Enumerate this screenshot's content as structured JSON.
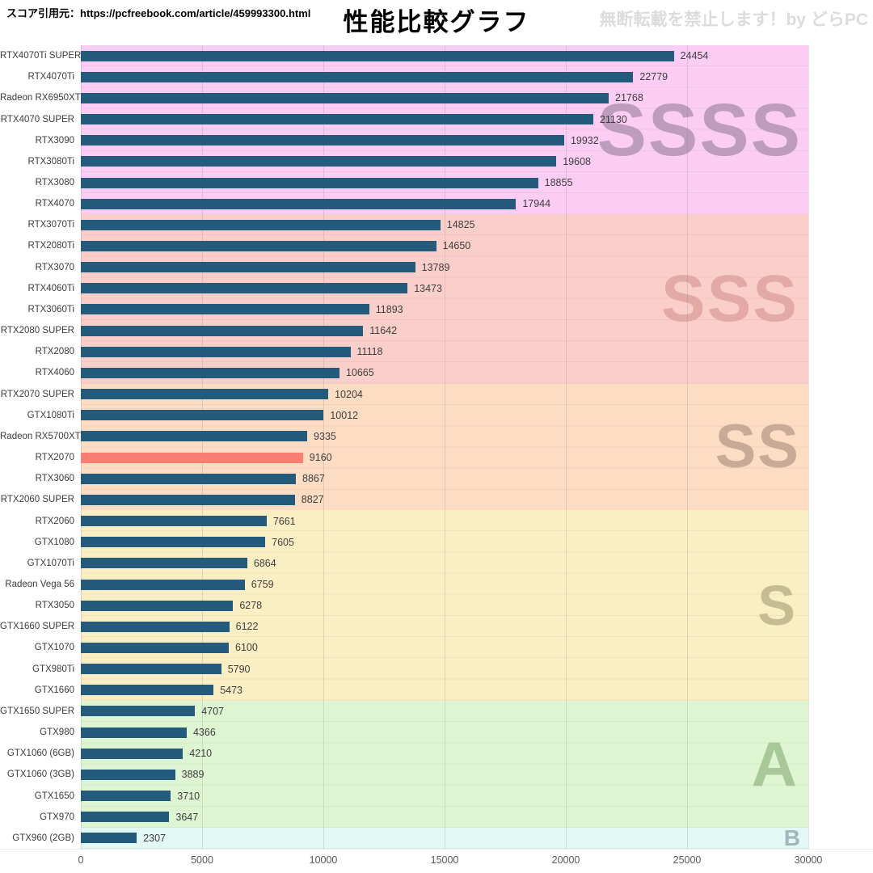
{
  "header": {
    "source": "スコア引用元：https://pcfreebook.com/article/459993300.html",
    "title": "性能比較グラフ",
    "watermark": "無断転載を禁止します！by どらPC"
  },
  "chart_data": {
    "type": "bar",
    "orientation": "horizontal",
    "title": "性能比較グラフ",
    "xlabel": "",
    "ylabel": "",
    "xlim": [
      0,
      30000
    ],
    "xticks": [
      0,
      5000,
      10000,
      15000,
      20000,
      25000,
      30000
    ],
    "grid": "vertical",
    "colors": {
      "bar": "#245a7c",
      "highlight_bar": "#f87f72",
      "grid": "rgba(125,125,125,0.22)",
      "value_text": "#3d3d3d",
      "label_text": "#3b3b3b",
      "axis_text": "#595959"
    },
    "tiers": [
      {
        "name": "SSSS",
        "band_color": "#fbcdf4",
        "letter_color": "#bd9cbd",
        "items": [
          {
            "label": "RTX4070Ti SUPER",
            "value": 24454
          },
          {
            "label": "RTX4070Ti",
            "value": 22779
          },
          {
            "label": "Radeon RX6950XT",
            "value": 21768
          },
          {
            "label": "RTX4070 SUPER",
            "value": 21130
          },
          {
            "label": "RTX3090",
            "value": 19932
          },
          {
            "label": "RTX3080Ti",
            "value": 19608
          },
          {
            "label": "RTX3080",
            "value": 18855
          },
          {
            "label": "RTX4070",
            "value": 17944
          }
        ]
      },
      {
        "name": "SSS",
        "band_color": "#fbcfc9",
        "letter_color": "#e3aaa5",
        "items": [
          {
            "label": "RTX3070Ti",
            "value": 14825
          },
          {
            "label": "RTX2080Ti",
            "value": 14650
          },
          {
            "label": "RTX3070",
            "value": 13789
          },
          {
            "label": "RTX4060Ti",
            "value": 13473
          },
          {
            "label": "RTX3060Ti",
            "value": 11893
          },
          {
            "label": "RTX2080 SUPER",
            "value": 11642
          },
          {
            "label": "RTX2080",
            "value": 11118
          },
          {
            "label": "RTX4060",
            "value": 10665
          }
        ]
      },
      {
        "name": "SS",
        "band_color": "#fcdcc3",
        "letter_color": "#c8ab96",
        "items": [
          {
            "label": "RTX2070 SUPER",
            "value": 10204
          },
          {
            "label": "GTX1080Ti",
            "value": 10012
          },
          {
            "label": "Radeon RX5700XT",
            "value": 9335
          },
          {
            "label": "RTX2070",
            "value": 9160,
            "highlight": true
          },
          {
            "label": "RTX3060",
            "value": 8867
          },
          {
            "label": "RTX2060 SUPER",
            "value": 8827
          }
        ]
      },
      {
        "name": "S",
        "band_color": "#faeec3",
        "letter_color": "#c5bd92",
        "items": [
          {
            "label": "RTX2060",
            "value": 7661
          },
          {
            "label": "GTX1080",
            "value": 7605
          },
          {
            "label": "GTX1070Ti",
            "value": 6864
          },
          {
            "label": "Radeon Vega 56",
            "value": 6759
          },
          {
            "label": "RTX3050",
            "value": 6278
          },
          {
            "label": "GTX1660 SUPER",
            "value": 6122
          },
          {
            "label": "GTX1070",
            "value": 6100
          },
          {
            "label": "GTX980Ti",
            "value": 5790
          },
          {
            "label": "GTX1660",
            "value": 5473
          }
        ]
      },
      {
        "name": "A",
        "band_color": "#def5d2",
        "letter_color": "#a8c89a",
        "items": [
          {
            "label": "GTX1650 SUPER",
            "value": 4707
          },
          {
            "label": "GTX980",
            "value": 4366
          },
          {
            "label": "GTX1060 (6GB)",
            "value": 4210
          },
          {
            "label": "GTX1060 (3GB)",
            "value": 3889
          },
          {
            "label": "GTX1650",
            "value": 3710
          },
          {
            "label": "GTX970",
            "value": 3647
          }
        ]
      },
      {
        "name": "B",
        "band_color": "#e2f8f5",
        "letter_color": "#a0b8bc",
        "items": [
          {
            "label": "GTX960 (2GB)",
            "value": 2307
          }
        ]
      }
    ]
  }
}
